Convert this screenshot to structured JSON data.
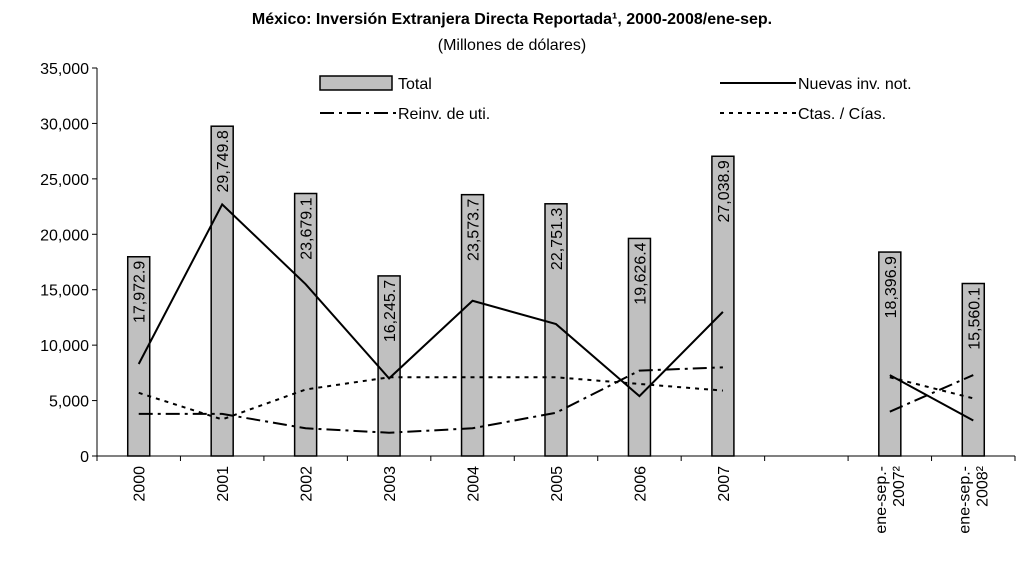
{
  "chart_data": {
    "type": "bar",
    "title": "México: Inversión Extranjera Directa Reportada¹, 2000-2008/ene-sep.",
    "subtitle": "(Millones de dólares)",
    "categories": [
      "2000",
      "2001",
      "2002",
      "2003",
      "2004",
      "2005",
      "2006",
      "2007",
      null,
      "ene-sep.-2007²",
      "ene-sep.-2008²"
    ],
    "ylim": [
      0,
      35000
    ],
    "yticks": [
      0,
      {
        "value": 5000,
        "label": "5,000"
      },
      {
        "value": 10000,
        "label": "10,000"
      },
      {
        "value": 15000,
        "label": "15,000"
      },
      {
        "value": 20000,
        "label": "20,000"
      },
      {
        "value": 25000,
        "label": "25,000"
      },
      {
        "value": 30000,
        "label": "30,000"
      },
      {
        "value": 35000,
        "label": "35,000"
      }
    ],
    "series": [
      {
        "name": "Total",
        "type": "bar",
        "color": "#c0c0c0",
        "values": [
          17972.9,
          29749.8,
          23679.1,
          16245.7,
          23573.7,
          22751.3,
          19626.4,
          27038.9,
          null,
          18396.9,
          15560.1
        ],
        "value_labels": [
          "17,972.9",
          "29,749.8",
          "23,679.1",
          "16,245.7",
          "23,573.7",
          "22,751.3",
          "19,626.4",
          "27,038.9",
          null,
          "18,396.9",
          "15,560.1"
        ]
      },
      {
        "name": "Nuevas inv. not.",
        "type": "line",
        "color": "#000000",
        "linestyle": "solid",
        "values": [
          8300,
          22700,
          15500,
          7000,
          14000,
          11900,
          5400,
          13000,
          null,
          7300,
          3200
        ]
      },
      {
        "name": "Reinv. de uti.",
        "type": "line",
        "color": "#000000",
        "linestyle": "dashdot",
        "values": [
          3800,
          3800,
          2500,
          2100,
          2500,
          3900,
          7700,
          8000,
          null,
          4000,
          7300
        ]
      },
      {
        "name": "Ctas. / Cías.",
        "type": "line",
        "color": "#000000",
        "linestyle": "dot",
        "values": [
          5700,
          3300,
          6000,
          7100,
          7100,
          7100,
          6500,
          5900,
          null,
          7100,
          5200
        ]
      }
    ]
  }
}
